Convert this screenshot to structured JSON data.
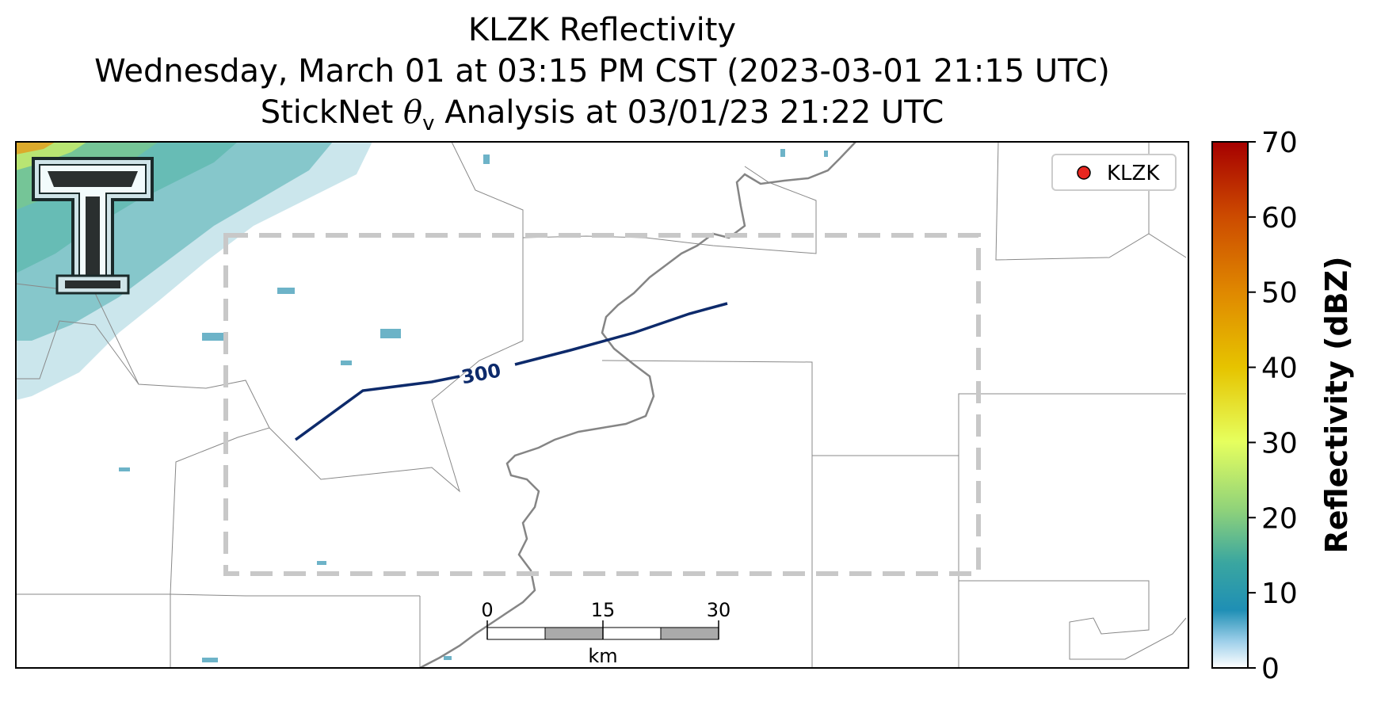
{
  "title": {
    "line1": "KLZK Reflectivity",
    "line2": "Wednesday, March 01 at 03:15 PM CST (2023-03-01 21:15 UTC)",
    "line3_prefix": "StickNet ",
    "line3_theta": "θ",
    "line3_sub": "v",
    "line3_suffix": " Analysis at 03/01/23 21:22 UTC"
  },
  "legend": {
    "label": "KLZK",
    "marker_color": "#e8261f"
  },
  "contour": {
    "label": "300",
    "color": "#0d2a6b"
  },
  "scale_bar": {
    "ticks": [
      "0",
      "15",
      "30"
    ],
    "unit": "km"
  },
  "colorbar": {
    "label": "Reflectivity (dBZ)",
    "ticks": [
      "0",
      "10",
      "20",
      "30",
      "40",
      "50",
      "60",
      "70"
    ],
    "colors": [
      "#ffffff",
      "#1f8fb5",
      "#3aa6a0",
      "#8fd27a",
      "#e6ff5e",
      "#e6c400",
      "#e08a00",
      "#cc4a00",
      "#a60000"
    ]
  },
  "logo": {
    "name": "texas-tech-double-t-logo"
  }
}
